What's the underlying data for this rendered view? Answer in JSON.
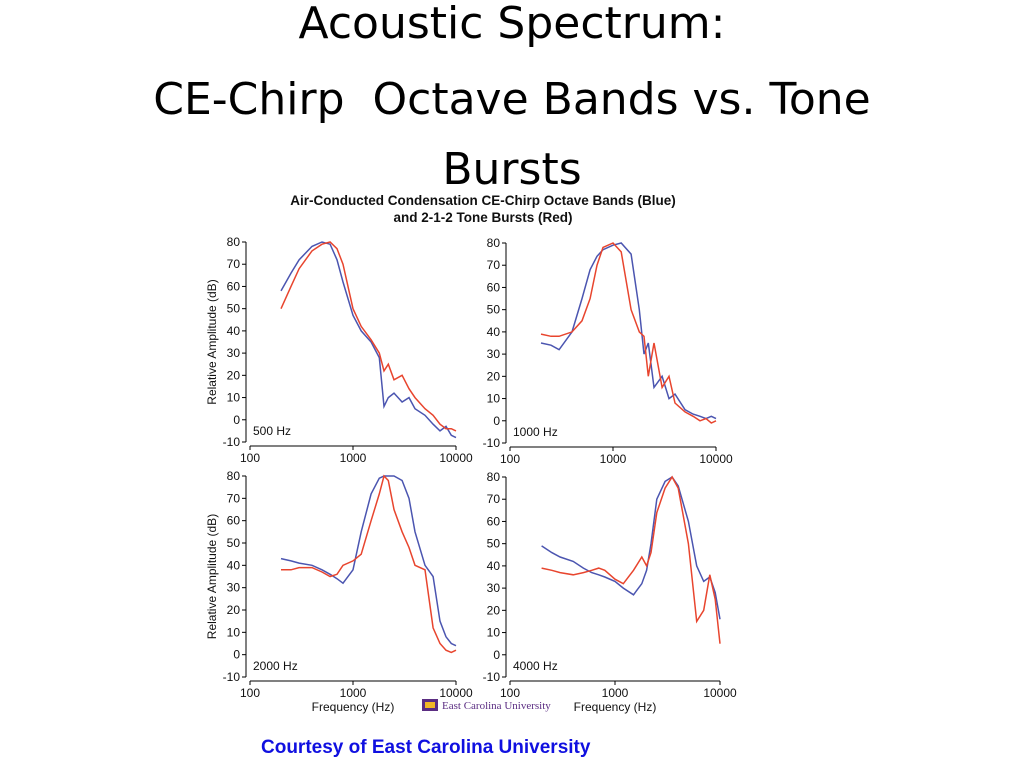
{
  "title": [
    "Acoustic Spectrum:",
    "CE-Chirp  Octave Bands vs. Tone",
    "Bursts"
  ],
  "figure_title": [
    "Air-Conducted Condensation CE-Chirp Octave Bands (Blue)",
    "and 2-1-2 Tone Bursts (Red)"
  ],
  "logo_text": "East Carolina University",
  "credit": "Courtesy of East Carolina University",
  "chart_data": [
    {
      "type": "line",
      "annotation": "500 Hz",
      "ylabel": "Relative Amplitude (dB)",
      "log_x": true,
      "x": [
        200,
        250,
        300,
        400,
        500,
        600,
        700,
        800,
        1000,
        1200,
        1500,
        1800,
        2000,
        2200,
        2500,
        3000,
        3500,
        4000,
        5000,
        6000,
        7000,
        8000,
        9000,
        10000
      ],
      "series": [
        {
          "color": "#4b55b0",
          "values": [
            58,
            66,
            72,
            78,
            80,
            79,
            72,
            62,
            47,
            40,
            35,
            28,
            6,
            10,
            12,
            8,
            10,
            5,
            2,
            -2,
            -5,
            -3,
            -7,
            -8
          ]
        },
        {
          "color": "#e8452e",
          "values": [
            50,
            60,
            68,
            76,
            79,
            80,
            77,
            70,
            50,
            42,
            36,
            30,
            22,
            25,
            18,
            20,
            14,
            10,
            5,
            2,
            -2,
            -4,
            -4,
            -5
          ]
        }
      ],
      "xlim": [
        100,
        10000
      ],
      "xticks": [
        100,
        1000,
        10000
      ],
      "ylim": [
        -10,
        80
      ],
      "yticks": [
        -10,
        0,
        10,
        20,
        30,
        40,
        50,
        60,
        70,
        80
      ]
    },
    {
      "type": "line",
      "annotation": "1000 Hz",
      "log_x": true,
      "x": [
        200,
        250,
        300,
        400,
        500,
        600,
        700,
        800,
        1000,
        1200,
        1500,
        1800,
        2000,
        2200,
        2500,
        3000,
        3500,
        4000,
        5000,
        6000,
        7000,
        8000,
        9000,
        10000
      ],
      "series": [
        {
          "color": "#4b55b0",
          "values": [
            35,
            34,
            32,
            40,
            55,
            68,
            74,
            77,
            79,
            80,
            75,
            50,
            30,
            35,
            15,
            20,
            10,
            12,
            5,
            3,
            2,
            1,
            2,
            1
          ]
        },
        {
          "color": "#e8452e",
          "values": [
            39,
            38,
            38,
            40,
            45,
            55,
            70,
            78,
            80,
            76,
            50,
            40,
            38,
            20,
            35,
            15,
            20,
            8,
            4,
            2,
            0,
            1,
            -1,
            0
          ]
        }
      ],
      "xlim": [
        100,
        10000
      ],
      "xticks": [
        100,
        1000,
        10000
      ],
      "ylim": [
        -10,
        80
      ],
      "yticks": [
        -10,
        0,
        10,
        20,
        30,
        40,
        50,
        60,
        70,
        80
      ]
    },
    {
      "type": "line",
      "annotation": "2000 Hz",
      "ylabel": "Relative Amplitude (dB)",
      "xlabel": "Frequency (Hz)",
      "log_x": true,
      "x": [
        200,
        250,
        300,
        400,
        500,
        600,
        700,
        800,
        1000,
        1200,
        1500,
        1800,
        2000,
        2200,
        2500,
        3000,
        3500,
        4000,
        5000,
        6000,
        7000,
        8000,
        9000,
        10000
      ],
      "series": [
        {
          "color": "#4b55b0",
          "values": [
            43,
            42,
            41,
            40,
            38,
            36,
            34,
            32,
            38,
            55,
            72,
            79,
            80,
            80,
            80,
            78,
            70,
            55,
            40,
            35,
            15,
            8,
            5,
            4
          ]
        },
        {
          "color": "#e8452e",
          "values": [
            38,
            38,
            39,
            39,
            37,
            35,
            36,
            40,
            42,
            45,
            60,
            72,
            80,
            78,
            65,
            55,
            48,
            40,
            38,
            12,
            5,
            2,
            1,
            2
          ]
        }
      ],
      "xlim": [
        100,
        10000
      ],
      "xticks": [
        100,
        1000,
        10000
      ],
      "ylim": [
        -10,
        80
      ],
      "yticks": [
        -10,
        0,
        10,
        20,
        30,
        40,
        50,
        60,
        70,
        80
      ]
    },
    {
      "type": "line",
      "annotation": "4000 Hz",
      "xlabel": "Frequency (Hz)",
      "log_x": true,
      "x": [
        200,
        250,
        300,
        400,
        500,
        600,
        700,
        800,
        1000,
        1200,
        1500,
        1800,
        2000,
        2200,
        2500,
        3000,
        3500,
        4000,
        5000,
        6000,
        7000,
        8000,
        9000,
        10000
      ],
      "series": [
        {
          "color": "#4b55b0",
          "values": [
            49,
            46,
            44,
            42,
            39,
            37,
            36,
            35,
            33,
            30,
            27,
            32,
            38,
            50,
            70,
            78,
            80,
            76,
            60,
            40,
            33,
            35,
            28,
            16
          ]
        },
        {
          "color": "#e8452e",
          "values": [
            39,
            38,
            37,
            36,
            37,
            38,
            39,
            38,
            34,
            32,
            38,
            44,
            40,
            46,
            64,
            75,
            80,
            75,
            50,
            15,
            20,
            36,
            25,
            5
          ]
        }
      ],
      "xlim": [
        100,
        10000
      ],
      "xticks": [
        100,
        1000,
        10000
      ],
      "ylim": [
        -10,
        80
      ],
      "yticks": [
        -10,
        0,
        10,
        20,
        30,
        40,
        50,
        60,
        70,
        80
      ]
    }
  ]
}
